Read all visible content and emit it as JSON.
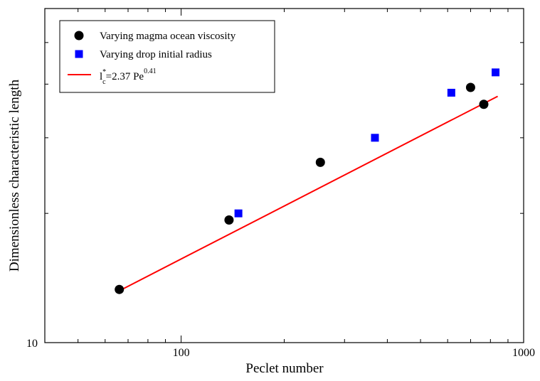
{
  "chart_data": {
    "type": "scatter",
    "title": "",
    "xlabel": "Peclet number",
    "ylabel": "Dimensionless characteristic length",
    "xscale": "log",
    "yscale": "log",
    "xlim": [
      40,
      1000
    ],
    "ylim": [
      10,
      60
    ],
    "xtick_labels": [
      {
        "value": 100,
        "label": "100"
      },
      {
        "value": 1000,
        "label": "1000"
      }
    ],
    "ytick_labels": [
      {
        "value": 10,
        "label": "10"
      }
    ],
    "grid": false,
    "legend_position": "top-left",
    "series": [
      {
        "name": "Varying magma ocean viscosity",
        "kind": "scatter",
        "marker": "circle",
        "color": "#000000",
        "points": [
          {
            "x": 66,
            "y": 13.3
          },
          {
            "x": 138,
            "y": 19.3
          },
          {
            "x": 255,
            "y": 26.3
          },
          {
            "x": 700,
            "y": 39.3
          },
          {
            "x": 765,
            "y": 35.9
          }
        ]
      },
      {
        "name": "Varying drop initial radius",
        "kind": "scatter",
        "marker": "square",
        "color": "#0000ff",
        "points": [
          {
            "x": 147,
            "y": 20.0
          },
          {
            "x": 368,
            "y": 30.0
          },
          {
            "x": 615,
            "y": 38.2
          },
          {
            "x": 828,
            "y": 42.6
          }
        ]
      },
      {
        "name_base": "l",
        "name_sup": "*",
        "name_sub": "c",
        "name_rest": "=2.37 Pe",
        "name_exp": "0.41",
        "kind": "line",
        "color": "#ff0000",
        "coef": 2.37,
        "exponent": 0.41,
        "x_range": [
          65,
          840
        ]
      }
    ]
  }
}
